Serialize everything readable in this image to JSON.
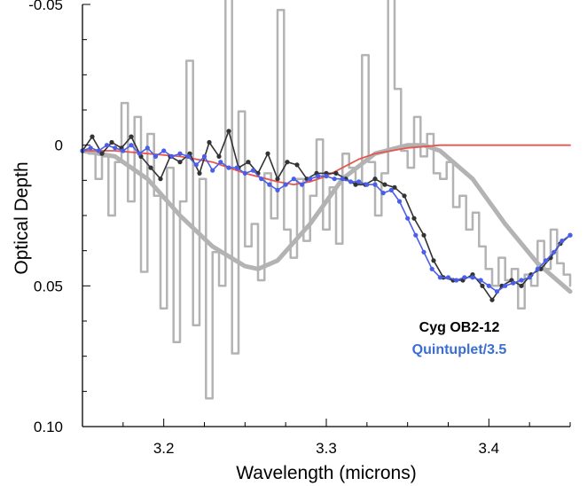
{
  "chart_data": {
    "type": "line",
    "title": "",
    "xlabel": "Wavelength (microns)",
    "ylabel": "Optical Depth",
    "xlim": [
      3.15,
      3.45
    ],
    "ylim": [
      0.1,
      -0.05
    ],
    "y_inverted": true,
    "grid": false,
    "x_ticks": [
      {
        "value": 3.2,
        "label": "3.2"
      },
      {
        "value": 3.3,
        "label": "3.3"
      },
      {
        "value": 3.4,
        "label": "3.4"
      }
    ],
    "y_ticks": [
      {
        "value": -0.05,
        "label": "-0.05"
      },
      {
        "value": 0,
        "label": "0"
      },
      {
        "value": 0.05,
        "label": "0.05"
      },
      {
        "value": 0.1,
        "label": "0.10"
      }
    ],
    "legend_position": "bottom-right",
    "colors": {
      "noisy": "#b3b3b3",
      "smooth": "#b3b3b3",
      "fit": "#e8554e",
      "cyg": "#333333",
      "quint": "#4a5ee8",
      "quint_label": "#3a6fd0"
    },
    "series": [
      {
        "key": "noisy",
        "x": [
          3.15,
          3.154,
          3.158,
          3.162,
          3.166,
          3.17,
          3.174,
          3.178,
          3.182,
          3.186,
          3.19,
          3.194,
          3.198,
          3.202,
          3.206,
          3.21,
          3.214,
          3.218,
          3.222,
          3.226,
          3.23,
          3.234,
          3.238,
          3.242,
          3.246,
          3.25,
          3.254,
          3.258,
          3.262,
          3.266,
          3.27,
          3.274,
          3.278,
          3.282,
          3.286,
          3.29,
          3.294,
          3.298,
          3.302,
          3.306,
          3.31,
          3.314,
          3.318,
          3.322,
          3.326,
          3.33,
          3.334,
          3.338,
          3.342,
          3.346,
          3.35,
          3.354,
          3.358,
          3.362,
          3.366,
          3.37,
          3.374,
          3.378,
          3.382,
          3.386,
          3.39,
          3.394,
          3.398,
          3.402,
          3.406,
          3.41,
          3.414,
          3.418,
          3.422,
          3.426,
          3.43,
          3.434,
          3.438,
          3.442,
          3.446,
          3.45
        ],
        "values": [
          0.002,
          0.003,
          0.012,
          0.004,
          0.025,
          0.006,
          -0.015,
          0.02,
          -0.01,
          0.045,
          -0.004,
          0.018,
          0.058,
          0.008,
          0.07,
          0.02,
          -0.03,
          0.064,
          0.012,
          0.09,
          0.038,
          0.05,
          -0.058,
          0.074,
          -0.012,
          0.036,
          0.028,
          0.048,
          0.01,
          0.026,
          -0.048,
          0.03,
          0.04,
          0.012,
          0.034,
          0.018,
          -0.002,
          0.03,
          0.015,
          0.035,
          0.003,
          0.008,
          0.014,
          -0.032,
          0.006,
          0.025,
          0.01,
          -0.055,
          -0.02,
          0.002,
          0.008,
          -0.01,
          0.004,
          -0.004,
          0.01,
          0.012,
          0.006,
          0.022,
          0.018,
          0.03,
          0.024,
          0.036,
          0.044,
          0.05,
          0.04,
          0.048,
          0.044,
          0.058,
          0.046,
          0.05,
          0.034,
          0.044,
          0.03,
          0.042,
          0.046,
          0.05
        ]
      },
      {
        "key": "smooth",
        "x": [
          3.15,
          3.17,
          3.19,
          3.21,
          3.23,
          3.25,
          3.258,
          3.27,
          3.29,
          3.31,
          3.33,
          3.35,
          3.36,
          3.37,
          3.39,
          3.41,
          3.43,
          3.45
        ],
        "values": [
          0.002,
          0.004,
          0.012,
          0.025,
          0.036,
          0.043,
          0.044,
          0.041,
          0.028,
          0.012,
          0.003,
          0.0,
          0.0,
          0.002,
          0.012,
          0.028,
          0.042,
          0.052
        ]
      },
      {
        "key": "fit",
        "x": [
          3.15,
          3.17,
          3.19,
          3.21,
          3.23,
          3.25,
          3.27,
          3.28,
          3.29,
          3.3,
          3.31,
          3.32,
          3.33,
          3.34,
          3.35,
          3.37,
          3.39,
          3.41,
          3.43,
          3.45
        ],
        "values": [
          0.002,
          0.002,
          0.003,
          0.004,
          0.006,
          0.01,
          0.013,
          0.014,
          0.013,
          0.011,
          0.008,
          0.005,
          0.003,
          0.002,
          0.001,
          0.0,
          0.0,
          0.0,
          0.0,
          0.0
        ]
      },
      {
        "key": "cyg",
        "name": "Cyg OB2-12",
        "x": [
          3.15,
          3.156,
          3.162,
          3.168,
          3.174,
          3.18,
          3.186,
          3.192,
          3.198,
          3.204,
          3.21,
          3.216,
          3.222,
          3.228,
          3.234,
          3.24,
          3.246,
          3.252,
          3.258,
          3.264,
          3.27,
          3.276,
          3.282,
          3.288,
          3.294,
          3.3,
          3.306,
          3.312,
          3.318,
          3.324,
          3.33,
          3.336,
          3.342,
          3.348,
          3.354,
          3.36,
          3.366,
          3.372,
          3.378,
          3.384,
          3.39,
          3.396,
          3.402,
          3.408,
          3.414,
          3.42,
          3.426,
          3.432,
          3.438,
          3.444,
          3.45
        ],
        "values": [
          0.002,
          -0.003,
          0.003,
          -0.001,
          0.001,
          -0.003,
          0.004,
          0.008,
          0.012,
          0.004,
          0.006,
          0.003,
          0.01,
          -0.001,
          0.004,
          -0.005,
          0.008,
          0.006,
          0.01,
          0.003,
          0.012,
          0.006,
          0.007,
          0.012,
          0.01,
          0.01,
          0.01,
          0.012,
          0.014,
          0.014,
          0.012,
          0.014,
          0.015,
          0.018,
          0.026,
          0.032,
          0.041,
          0.047,
          0.048,
          0.048,
          0.046,
          0.05,
          0.055,
          0.05,
          0.048,
          0.05,
          0.046,
          0.044,
          0.04,
          0.035,
          0.032
        ]
      },
      {
        "key": "quint",
        "name": "Quintuplet/3.5",
        "x": [
          3.15,
          3.155,
          3.16,
          3.165,
          3.17,
          3.175,
          3.18,
          3.185,
          3.19,
          3.195,
          3.2,
          3.205,
          3.21,
          3.215,
          3.22,
          3.225,
          3.23,
          3.235,
          3.24,
          3.245,
          3.25,
          3.255,
          3.26,
          3.265,
          3.27,
          3.275,
          3.28,
          3.285,
          3.29,
          3.295,
          3.3,
          3.305,
          3.31,
          3.315,
          3.32,
          3.325,
          3.33,
          3.335,
          3.34,
          3.345,
          3.35,
          3.355,
          3.36,
          3.365,
          3.37,
          3.375,
          3.38,
          3.385,
          3.39,
          3.395,
          3.4,
          3.405,
          3.41,
          3.415,
          3.42,
          3.425,
          3.43,
          3.435,
          3.44,
          3.445,
          3.45
        ],
        "values": [
          0.002,
          0.001,
          0.002,
          0.0,
          0.001,
          0.002,
          0.0,
          0.003,
          0.001,
          0.004,
          0.002,
          0.004,
          0.003,
          0.004,
          0.007,
          0.004,
          0.009,
          0.006,
          0.008,
          0.008,
          0.01,
          0.009,
          0.012,
          0.014,
          0.016,
          0.014,
          0.012,
          0.014,
          0.012,
          0.011,
          0.011,
          0.012,
          0.012,
          0.013,
          0.013,
          0.014,
          0.014,
          0.017,
          0.016,
          0.02,
          0.026,
          0.032,
          0.038,
          0.044,
          0.047,
          0.047,
          0.048,
          0.047,
          0.047,
          0.048,
          0.05,
          0.052,
          0.05,
          0.049,
          0.048,
          0.047,
          0.044,
          0.041,
          0.038,
          0.034,
          0.032
        ]
      }
    ],
    "legend": [
      {
        "key": "cyg",
        "label": "Cyg OB2-12"
      },
      {
        "key": "quint",
        "label": "Quintuplet/3.5"
      }
    ]
  }
}
